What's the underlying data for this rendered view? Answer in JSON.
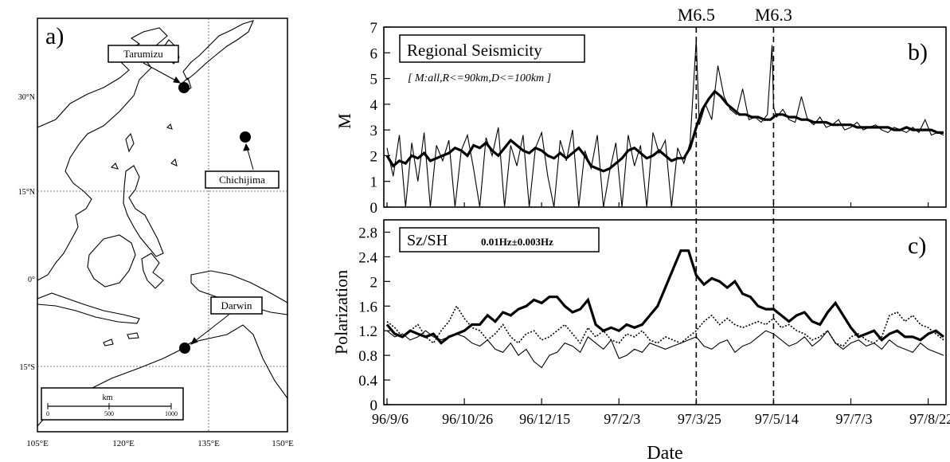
{
  "panel_a": {
    "label": "a)",
    "stations": [
      {
        "name": "Tarumizu",
        "lon": 130.8,
        "lat": 31.4
      },
      {
        "name": "Chichijima",
        "lon": 142.2,
        "lat": 27.1
      },
      {
        "name": "Darwin",
        "lon": 130.9,
        "lat": -12.4
      }
    ],
    "lon_ticks": [
      "105°E",
      "120°E",
      "135°E",
      "150°E"
    ],
    "lat_ticks": [
      "30°N",
      "15°N",
      "0°",
      "15°S"
    ],
    "scale_bar": {
      "unit": "km",
      "labels": [
        "0",
        "500",
        "1000"
      ]
    }
  },
  "chart_data": [
    {
      "type": "line",
      "panel_label": "b)",
      "title": "Regional Seismicity",
      "subtitle": "[ M:all,R<=90km,D<=100km ]",
      "ylabel": "M",
      "ylim": [
        0,
        7
      ],
      "yticks": [
        0,
        1,
        2,
        3,
        4,
        5,
        6,
        7
      ],
      "events": [
        {
          "label": "M6.5",
          "date": "97/3/25",
          "day": 200
        },
        {
          "label": "M6.3",
          "date": "97/5/14",
          "day": 250
        }
      ],
      "series": [
        {
          "style": "thin",
          "x": [
            0,
            4,
            8,
            12,
            16,
            20,
            24,
            28,
            32,
            36,
            40,
            44,
            48,
            52,
            56,
            60,
            64,
            68,
            72,
            76,
            80,
            84,
            88,
            92,
            96,
            100,
            104,
            108,
            112,
            116,
            120,
            124,
            128,
            132,
            136,
            140,
            144,
            148,
            152,
            156,
            160,
            164,
            168,
            172,
            176,
            180,
            184,
            188,
            192,
            196,
            200,
            202,
            206,
            210,
            214,
            218,
            222,
            226,
            230,
            234,
            238,
            242,
            246,
            249,
            250,
            252,
            256,
            260,
            264,
            268,
            272,
            276,
            280,
            284,
            288,
            292,
            296,
            300,
            304,
            308,
            312,
            316,
            320,
            324,
            328,
            332,
            336,
            340,
            344,
            348,
            352,
            356,
            360
          ],
          "y": [
            2.3,
            1.2,
            2.8,
            0,
            2.5,
            1.0,
            2.9,
            0,
            2.4,
            1.8,
            2.6,
            0,
            2.2,
            2.8,
            1.5,
            0,
            2.7,
            2.0,
            3.1,
            0,
            2.4,
            1.6,
            2.8,
            0,
            2.3,
            2.9,
            1.2,
            0,
            2.6,
            1.8,
            3.0,
            0,
            2.2,
            1.5,
            2.8,
            0,
            1.4,
            2.5,
            0,
            2.8,
            1.6,
            2.4,
            0,
            2.9,
            2.1,
            2.6,
            0,
            2.3,
            1.7,
            2.5,
            6.5,
            3.2,
            4.0,
            3.4,
            5.5,
            4.3,
            3.8,
            3.6,
            4.6,
            3.4,
            3.5,
            3.3,
            3.6,
            6.3,
            3.9,
            3.5,
            3.8,
            3.4,
            3.3,
            4.3,
            3.4,
            3.2,
            3.5,
            3.1,
            3.2,
            3.4,
            3.0,
            3.1,
            3.3,
            3.0,
            3.1,
            3.2,
            3.0,
            2.9,
            3.1,
            3.0,
            2.9,
            3.1,
            2.9,
            3.4,
            2.8,
            2.9,
            2.8
          ]
        },
        {
          "style": "bold",
          "x": [
            0,
            4,
            8,
            12,
            16,
            20,
            24,
            28,
            32,
            36,
            40,
            44,
            48,
            52,
            56,
            60,
            64,
            68,
            72,
            76,
            80,
            84,
            88,
            92,
            96,
            100,
            104,
            108,
            112,
            116,
            120,
            124,
            128,
            132,
            136,
            140,
            144,
            148,
            152,
            156,
            160,
            164,
            168,
            172,
            176,
            180,
            184,
            188,
            192,
            196,
            200,
            204,
            208,
            212,
            216,
            220,
            224,
            228,
            232,
            236,
            240,
            244,
            248,
            252,
            256,
            260,
            264,
            268,
            272,
            276,
            280,
            284,
            288,
            292,
            296,
            300,
            304,
            308,
            312,
            316,
            320,
            324,
            328,
            332,
            336,
            340,
            344,
            348,
            352,
            356,
            360
          ],
          "y": [
            2.0,
            1.6,
            1.8,
            1.7,
            2.0,
            1.9,
            2.1,
            1.8,
            1.9,
            2.0,
            2.1,
            2.3,
            2.2,
            2.0,
            2.4,
            2.3,
            2.5,
            2.2,
            2.0,
            2.3,
            2.6,
            2.4,
            2.2,
            2.1,
            2.3,
            2.2,
            2.0,
            1.9,
            2.1,
            1.9,
            2.1,
            2.3,
            2.0,
            1.6,
            1.5,
            1.4,
            1.5,
            1.7,
            1.9,
            2.2,
            2.3,
            2.1,
            1.9,
            2.0,
            2.2,
            2.0,
            1.8,
            1.9,
            1.9,
            2.3,
            3.1,
            3.8,
            4.2,
            4.5,
            4.3,
            4.0,
            3.8,
            3.6,
            3.6,
            3.5,
            3.5,
            3.4,
            3.4,
            3.6,
            3.6,
            3.5,
            3.5,
            3.4,
            3.4,
            3.3,
            3.3,
            3.3,
            3.2,
            3.2,
            3.2,
            3.2,
            3.1,
            3.1,
            3.1,
            3.1,
            3.1,
            3.1,
            3.0,
            3.0,
            3.1,
            3.0,
            3.0,
            3.0,
            3.0,
            2.9,
            2.9
          ]
        }
      ]
    },
    {
      "type": "line",
      "panel_label": "c)",
      "title": "Sz/SH",
      "subtitle": "0.01Hz±0.003Hz",
      "xlabel": "Date",
      "ylabel": "Polarization",
      "ylim": [
        0,
        3.0
      ],
      "yticks": [
        0,
        0.4,
        0.8,
        1.2,
        1.6,
        2,
        2.4,
        2.8
      ],
      "xlim": [
        0,
        360
      ],
      "xticks": [
        {
          "label": "96/9/6",
          "day": 0
        },
        {
          "label": "96/10/26",
          "day": 50
        },
        {
          "label": "96/12/15",
          "day": 100
        },
        {
          "label": "97/2/3",
          "day": 150
        },
        {
          "label": "97/3/25",
          "day": 200
        },
        {
          "label": "97/5/14",
          "day": 250
        },
        {
          "label": "97/7/3",
          "day": 300
        },
        {
          "label": "97/8/22",
          "day": 350
        }
      ],
      "series": [
        {
          "style": "bold",
          "x": [
            0,
            5,
            10,
            15,
            20,
            25,
            30,
            35,
            40,
            45,
            50,
            55,
            60,
            65,
            70,
            75,
            80,
            85,
            90,
            95,
            100,
            105,
            110,
            115,
            120,
            125,
            130,
            135,
            140,
            145,
            150,
            155,
            160,
            165,
            170,
            175,
            180,
            185,
            190,
            195,
            200,
            205,
            210,
            215,
            220,
            225,
            230,
            235,
            240,
            245,
            250,
            255,
            260,
            265,
            270,
            275,
            280,
            285,
            290,
            295,
            300,
            305,
            310,
            315,
            320,
            325,
            330,
            335,
            340,
            345,
            350,
            355,
            360
          ],
          "y": [
            1.3,
            1.15,
            1.1,
            1.2,
            1.15,
            1.1,
            1.15,
            1.0,
            1.1,
            1.15,
            1.2,
            1.3,
            1.3,
            1.45,
            1.35,
            1.5,
            1.45,
            1.55,
            1.6,
            1.7,
            1.65,
            1.75,
            1.75,
            1.6,
            1.5,
            1.55,
            1.7,
            1.3,
            1.2,
            1.25,
            1.2,
            1.3,
            1.25,
            1.3,
            1.45,
            1.6,
            1.9,
            2.2,
            2.5,
            2.5,
            2.1,
            1.95,
            2.05,
            2.0,
            1.9,
            2.0,
            1.8,
            1.75,
            1.6,
            1.55,
            1.55,
            1.45,
            1.35,
            1.45,
            1.5,
            1.35,
            1.3,
            1.5,
            1.65,
            1.45,
            1.25,
            1.1,
            1.15,
            1.2,
            1.05,
            1.15,
            1.2,
            1.1,
            1.1,
            1.05,
            1.15,
            1.2,
            1.1
          ]
        },
        {
          "style": "thin",
          "x": [
            0,
            5,
            10,
            15,
            20,
            25,
            30,
            35,
            40,
            45,
            50,
            55,
            60,
            65,
            70,
            75,
            80,
            85,
            90,
            95,
            100,
            105,
            110,
            115,
            120,
            125,
            130,
            135,
            140,
            145,
            150,
            155,
            160,
            165,
            170,
            175,
            180,
            185,
            190,
            195,
            200,
            205,
            210,
            215,
            220,
            225,
            230,
            235,
            240,
            245,
            250,
            255,
            260,
            265,
            270,
            275,
            280,
            285,
            290,
            295,
            300,
            305,
            310,
            315,
            320,
            325,
            330,
            335,
            340,
            345,
            350,
            355,
            360
          ],
          "y": [
            1.2,
            1.1,
            1.15,
            1.05,
            1.1,
            1.2,
            1.1,
            1.05,
            1.1,
            1.15,
            1.1,
            1.0,
            0.95,
            1.05,
            0.9,
            0.85,
            1.0,
            0.8,
            0.9,
            0.7,
            0.6,
            0.8,
            0.85,
            1.0,
            0.95,
            0.85,
            1.1,
            1.0,
            0.9,
            1.05,
            0.75,
            0.8,
            0.9,
            0.85,
            1.0,
            0.95,
            0.9,
            0.95,
            1.0,
            1.05,
            1.1,
            0.95,
            0.9,
            1.0,
            1.05,
            0.85,
            0.95,
            1.0,
            1.1,
            1.2,
            1.15,
            1.05,
            0.95,
            1.0,
            1.1,
            0.95,
            1.05,
            1.2,
            1.0,
            0.9,
            1.0,
            1.05,
            0.95,
            1.0,
            0.9,
            1.05,
            0.95,
            0.9,
            0.85,
            1.0,
            0.9,
            0.85,
            0.8
          ]
        },
        {
          "style": "dotted",
          "x": [
            0,
            5,
            10,
            15,
            20,
            25,
            30,
            35,
            40,
            45,
            50,
            55,
            60,
            65,
            70,
            75,
            80,
            85,
            90,
            95,
            100,
            105,
            110,
            115,
            120,
            125,
            130,
            135,
            140,
            145,
            150,
            155,
            160,
            165,
            170,
            175,
            180,
            185,
            190,
            195,
            200,
            205,
            210,
            215,
            220,
            225,
            230,
            235,
            240,
            245,
            250,
            255,
            260,
            265,
            270,
            275,
            280,
            285,
            290,
            295,
            300,
            305,
            310,
            315,
            320,
            325,
            330,
            335,
            340,
            345,
            350,
            355,
            360
          ],
          "y": [
            1.35,
            1.25,
            1.1,
            1.2,
            1.3,
            1.1,
            1.0,
            1.2,
            1.35,
            1.6,
            1.4,
            1.25,
            1.2,
            1.05,
            1.15,
            1.3,
            1.1,
            1.0,
            1.15,
            1.2,
            1.05,
            1.1,
            1.2,
            1.3,
            1.15,
            1.0,
            1.25,
            1.1,
            1.2,
            1.05,
            1.0,
            1.15,
            1.1,
            1.2,
            1.05,
            1.0,
            1.1,
            1.05,
            1.0,
            1.1,
            1.2,
            1.35,
            1.45,
            1.3,
            1.4,
            1.3,
            1.25,
            1.3,
            1.35,
            1.3,
            1.4,
            1.25,
            1.3,
            1.2,
            1.15,
            1.05,
            1.1,
            1.2,
            1.0,
            0.95,
            1.1,
            1.15,
            1.05,
            1.0,
            1.1,
            1.45,
            1.5,
            1.35,
            1.45,
            1.3,
            1.25,
            1.15,
            1.05
          ]
        }
      ]
    }
  ]
}
